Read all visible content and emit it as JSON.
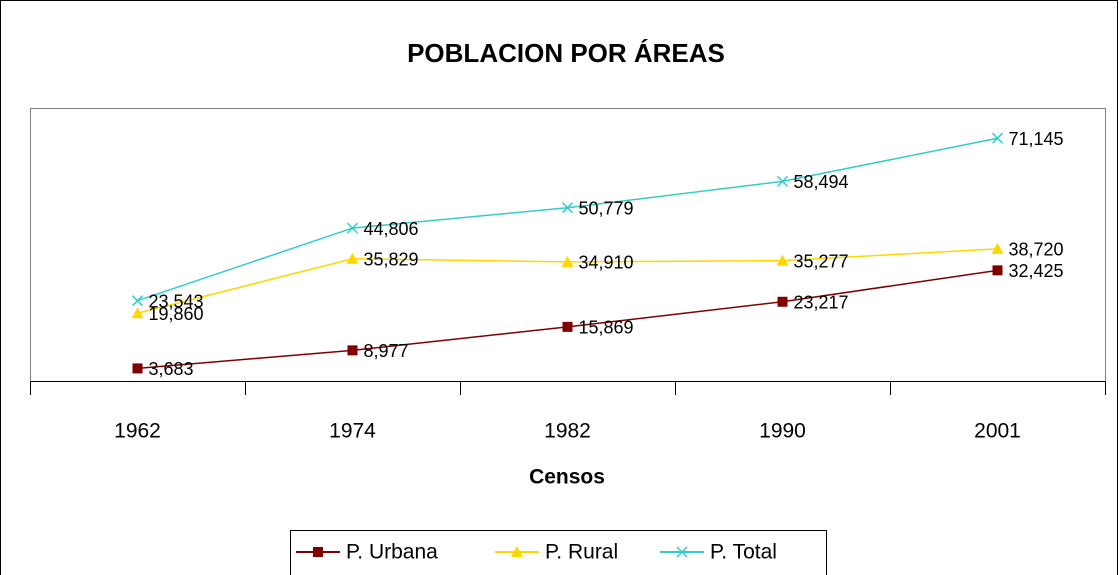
{
  "chart_data": {
    "type": "line",
    "title": "POBLACION POR ÁREAS",
    "x_label": "Censos",
    "categories": [
      "1962",
      "1974",
      "1982",
      "1990",
      "2001"
    ],
    "ylim": [
      0,
      80000
    ],
    "series": [
      {
        "name": "P. Urbana",
        "color": "#800000",
        "marker": "square",
        "values": [
          3683,
          8977,
          15869,
          23217,
          32425
        ],
        "value_labels": [
          "3,683",
          "8,977",
          "15,869",
          "23,217",
          "32,425"
        ]
      },
      {
        "name": "P. Rural",
        "color": "#ffd700",
        "marker": "triangle",
        "values": [
          19860,
          35829,
          34910,
          35277,
          38720
        ],
        "value_labels": [
          "19,860",
          "35,829",
          "34,910",
          "35,277",
          "38,720"
        ]
      },
      {
        "name": "P. Total",
        "color": "#33cccc",
        "marker": "x",
        "values": [
          23543,
          44806,
          50779,
          58494,
          71145
        ],
        "value_labels": [
          "23,543",
          "44,806",
          "50,779",
          "58,494",
          "71,145"
        ]
      }
    ],
    "legend": "bottom"
  }
}
